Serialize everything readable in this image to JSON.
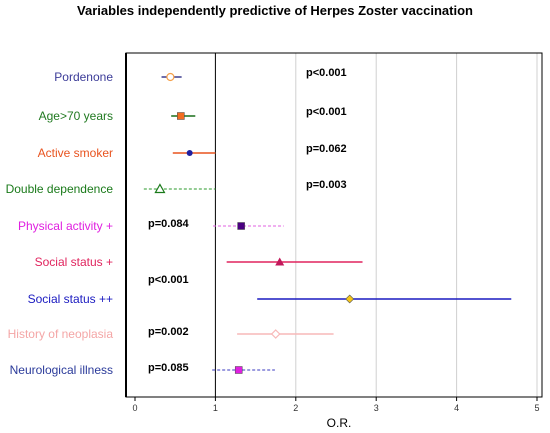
{
  "chart_data": {
    "type": "forest",
    "title": "Variables independently predictive of Herpes Zoster vaccination",
    "xlabel": "O.R.",
    "xlim": [
      0,
      5
    ],
    "xticks": [
      "0",
      "1",
      "2",
      "3",
      "4",
      "5"
    ],
    "reference_line": 1,
    "grid": "vertical",
    "rows": [
      {
        "label": "Pordenone",
        "label_color": "#3b3b98",
        "or": 0.44,
        "lo": 0.33,
        "hi": 0.58,
        "marker": "circle-open",
        "color": "#f5a04a",
        "line_color": "#3d3d8f",
        "dashed": false,
        "p": "p<0.001",
        "p_side": "right"
      },
      {
        "label": "Age>70 years",
        "label_color": "#217a21",
        "or": 0.57,
        "lo": 0.45,
        "hi": 0.75,
        "marker": "square",
        "color": "#f26d21",
        "line_color": "#1a6e1a",
        "dashed": false,
        "p": "p<0.001",
        "p_side": "right"
      },
      {
        "label": "Active smoker",
        "label_color": "#e8531f",
        "or": 0.68,
        "lo": 0.47,
        "hi": 1.0,
        "marker": "circle",
        "color": "#1f1f9f",
        "line_color": "#e8531f",
        "dashed": false,
        "p": "p=0.062",
        "p_side": "right"
      },
      {
        "label": "Double dependence",
        "label_color": "#1a7a1a",
        "or": 0.31,
        "lo": 0.11,
        "hi": 1.0,
        "marker": "triangle-open",
        "color": "#1a7a1a",
        "line_color": "#2b9a2b",
        "dashed": true,
        "p": "p=0.003",
        "p_side": "right"
      },
      {
        "label": "Physical activity +",
        "label_color": "#e020e0",
        "or": 1.32,
        "lo": 0.97,
        "hi": 1.85,
        "marker": "square",
        "color": "#4b0082",
        "line_color": "#e060e0",
        "dashed": true,
        "p": "p=0.084",
        "p_side": "left"
      },
      {
        "label": "Social status +",
        "label_color": "#e0245e",
        "or": 1.8,
        "lo": 1.14,
        "hi": 2.83,
        "marker": "triangle",
        "color": "#c2185b",
        "line_color": "#e0245e",
        "dashed": false,
        "p": "",
        "p_side": "left"
      },
      {
        "label": "Social status ++",
        "label_color": "#1a1ac0",
        "or": 2.67,
        "lo": 1.52,
        "hi": 4.68,
        "marker": "diamond",
        "color": "#f5c518",
        "line_color": "#1a1ac0",
        "dashed": false,
        "p": "p<0.001",
        "p_side": "left"
      },
      {
        "label": "History of neoplasia",
        "label_color": "#f4a6a6",
        "or": 1.75,
        "lo": 1.27,
        "hi": 2.47,
        "marker": "diamond-open",
        "color": "#f7b8b8",
        "line_color": "#f7b8b8",
        "dashed": false,
        "p": "p=0.002",
        "p_side": "left"
      },
      {
        "label": "Neurological illness",
        "label_color": "#2a3a9a",
        "or": 1.29,
        "lo": 0.96,
        "hi": 1.74,
        "marker": "square",
        "color": "#e020e0",
        "line_color": "#3a3ac0",
        "dashed": true,
        "p": "p=0.085",
        "p_side": "left"
      }
    ]
  }
}
